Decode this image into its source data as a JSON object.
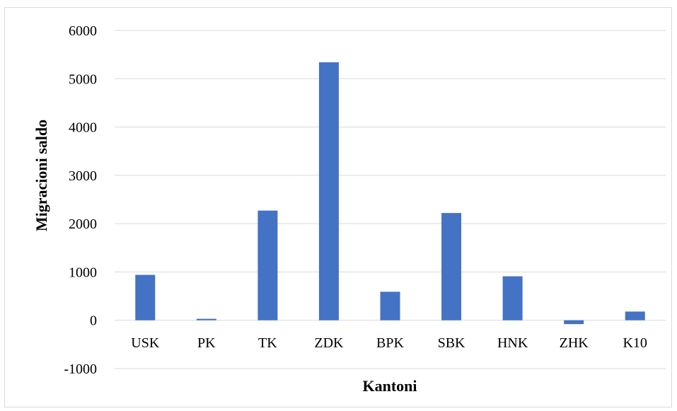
{
  "chart_data": {
    "type": "bar",
    "title": "",
    "xlabel": "Kantoni",
    "ylabel": "Migracioni saldo",
    "categories": [
      "USK",
      "PK",
      "TK",
      "ZDK",
      "BPK",
      "SBK",
      "HNK",
      "ZHK",
      "K10"
    ],
    "values": [
      940,
      30,
      2270,
      5340,
      590,
      2220,
      910,
      -80,
      180
    ],
    "ylim": [
      -1000,
      6000
    ],
    "yticks": [
      -1000,
      0,
      1000,
      2000,
      3000,
      4000,
      5000,
      6000
    ],
    "grid": true,
    "legend": "none",
    "bar_color": "#4472c4"
  }
}
